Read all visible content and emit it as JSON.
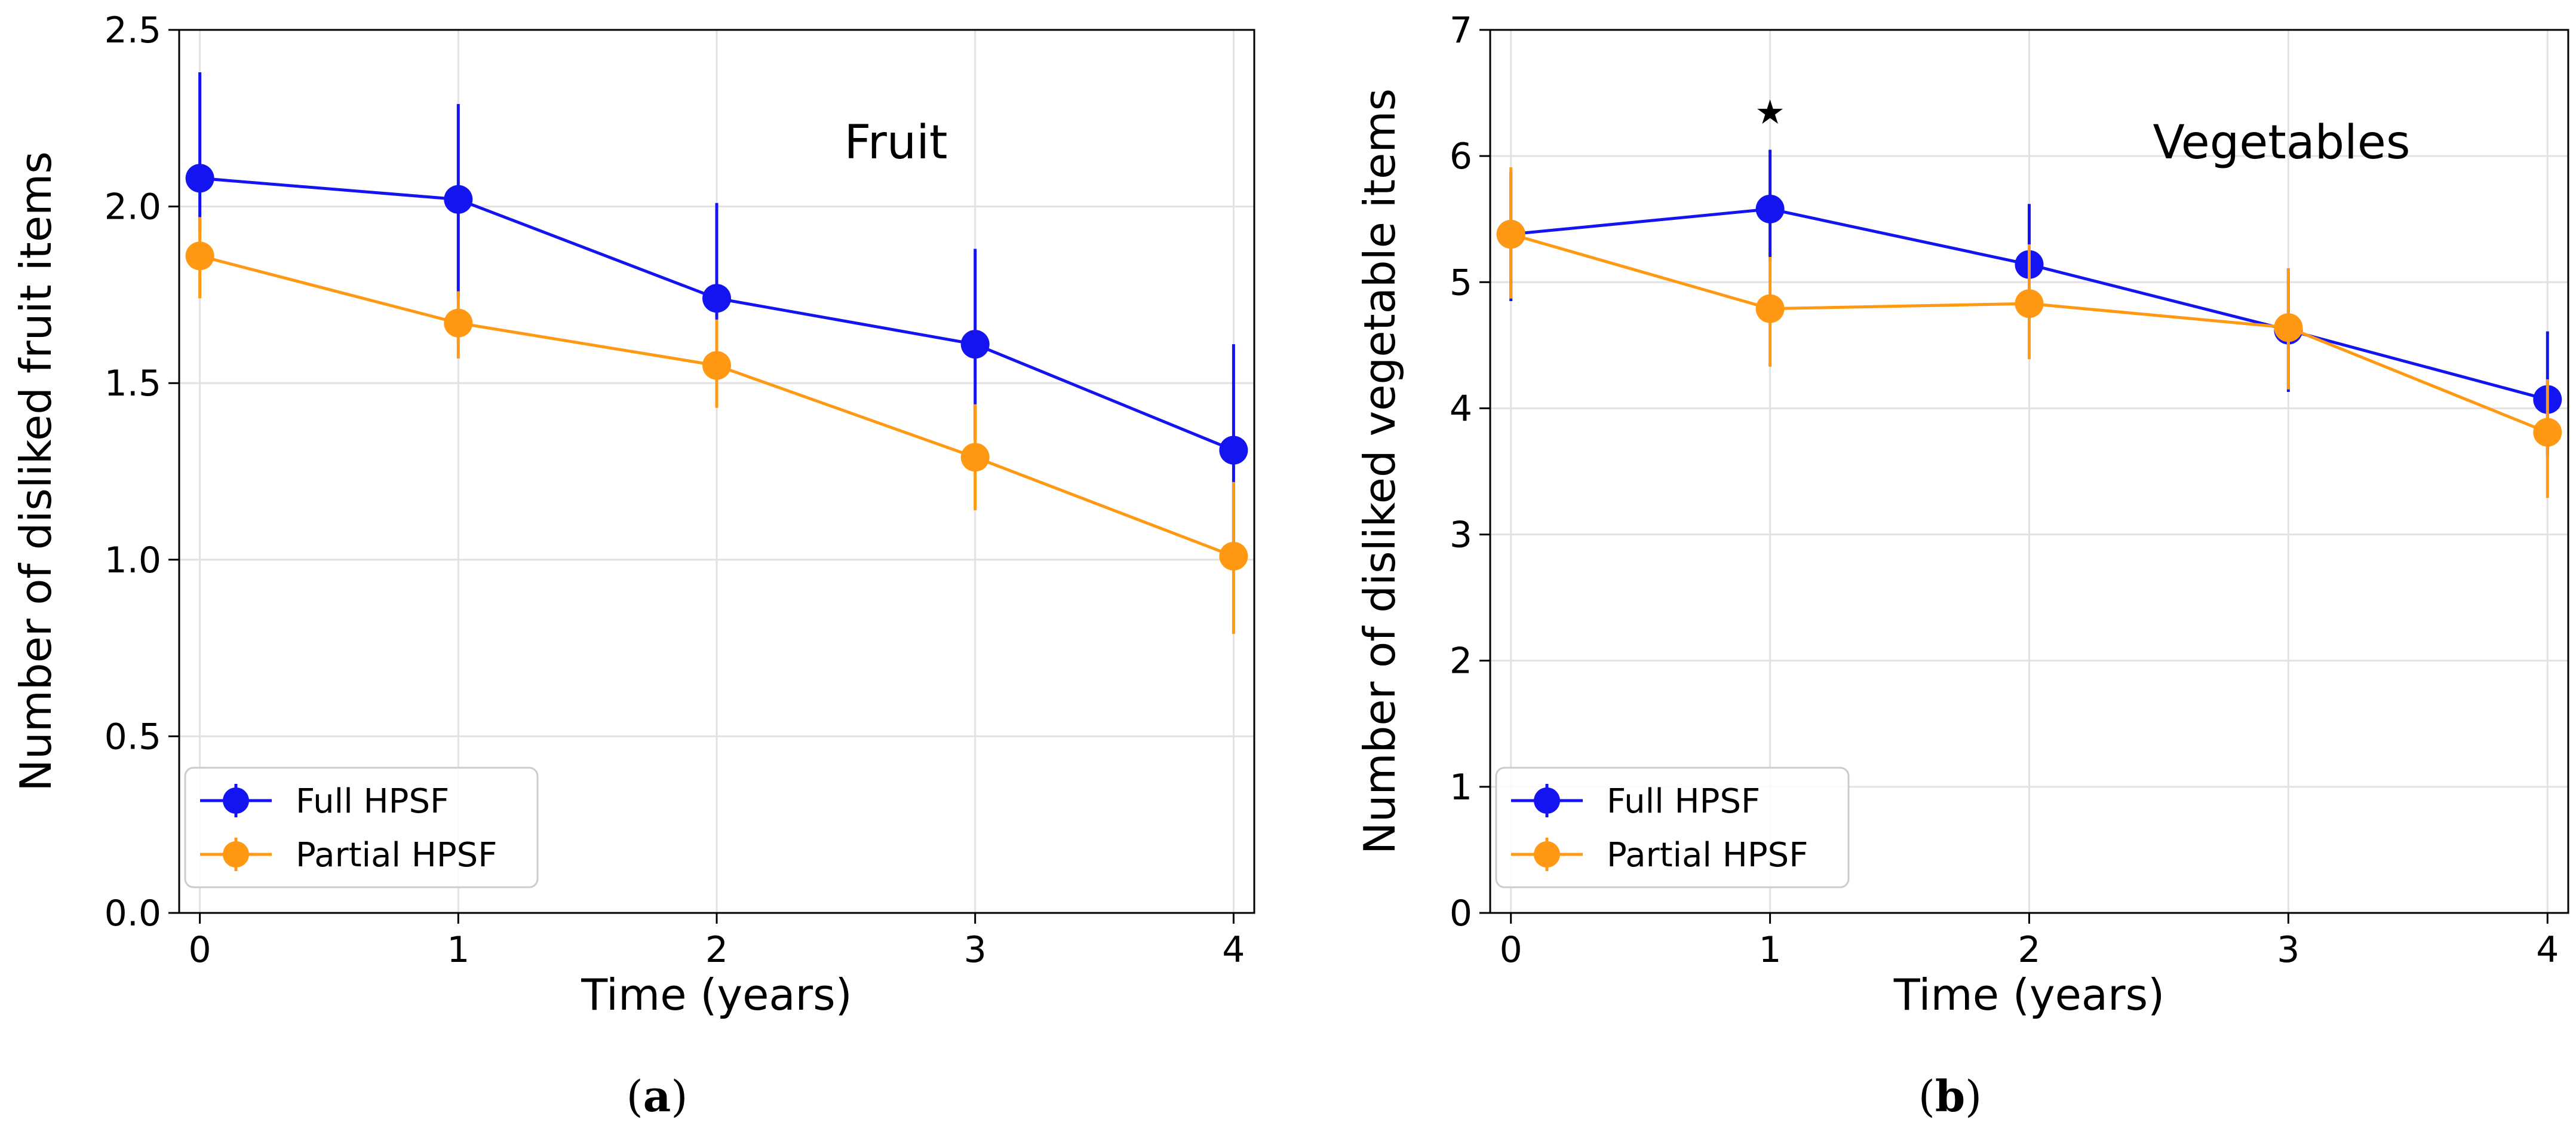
{
  "chart_data": [
    {
      "type": "line",
      "panel_label": "a",
      "annotation": "Fruit",
      "xlabel": "Time (years)",
      "ylabel": "Number of disliked fruit items",
      "x": [
        0,
        1,
        2,
        3,
        4
      ],
      "xticks": [
        "0",
        "1",
        "2",
        "3",
        "4"
      ],
      "yticks": [
        "0.0",
        "0.5",
        "1.0",
        "1.5",
        "2.0",
        "2.5"
      ],
      "xlim": [
        -0.08,
        4.08
      ],
      "ylim": [
        0,
        2.5
      ],
      "grid": true,
      "legend_position": "bottom-left",
      "series": [
        {
          "name": "Full HPSF",
          "color": "#1414f0",
          "values": [
            2.08,
            2.02,
            1.74,
            1.61,
            1.31
          ],
          "err_low": [
            1.93,
            1.74,
            1.48,
            1.34,
            1.02
          ],
          "err_high": [
            2.38,
            2.29,
            2.01,
            1.88,
            1.61
          ]
        },
        {
          "name": "Partial HPSF",
          "color": "#ff9913",
          "values": [
            1.86,
            1.67,
            1.55,
            1.29,
            1.01
          ],
          "err_low": [
            1.74,
            1.57,
            1.43,
            1.14,
            0.79
          ],
          "err_high": [
            1.97,
            1.76,
            1.68,
            1.44,
            1.22
          ]
        }
      ]
    },
    {
      "type": "line",
      "panel_label": "b",
      "annotation": "Vegetables",
      "significance_marker": "★",
      "significance_x": 1,
      "significance_y": 6.35,
      "xlabel": "Time (years)",
      "ylabel": "Number of disliked vegetable items",
      "x": [
        0,
        1,
        2,
        3,
        4
      ],
      "xticks": [
        "0",
        "1",
        "2",
        "3",
        "4"
      ],
      "yticks": [
        "0",
        "1",
        "2",
        "3",
        "4",
        "5",
        "6",
        "7"
      ],
      "xlim": [
        -0.08,
        4.08
      ],
      "ylim": [
        0,
        7
      ],
      "grid": true,
      "legend_position": "bottom-left",
      "series": [
        {
          "name": "Full HPSF",
          "color": "#1414f0",
          "values": [
            5.38,
            5.58,
            5.14,
            4.62,
            4.07
          ],
          "err_low": [
            4.85,
            5.16,
            4.72,
            4.13,
            3.62
          ],
          "err_high": [
            5.87,
            6.05,
            5.62,
            5.11,
            4.61
          ]
        },
        {
          "name": "Partial HPSF",
          "color": "#ff9913",
          "values": [
            5.38,
            4.79,
            4.83,
            4.64,
            3.81
          ],
          "err_low": [
            4.87,
            4.33,
            4.39,
            4.15,
            3.29
          ],
          "err_high": [
            5.91,
            5.2,
            5.3,
            5.11,
            4.23
          ]
        }
      ]
    }
  ]
}
